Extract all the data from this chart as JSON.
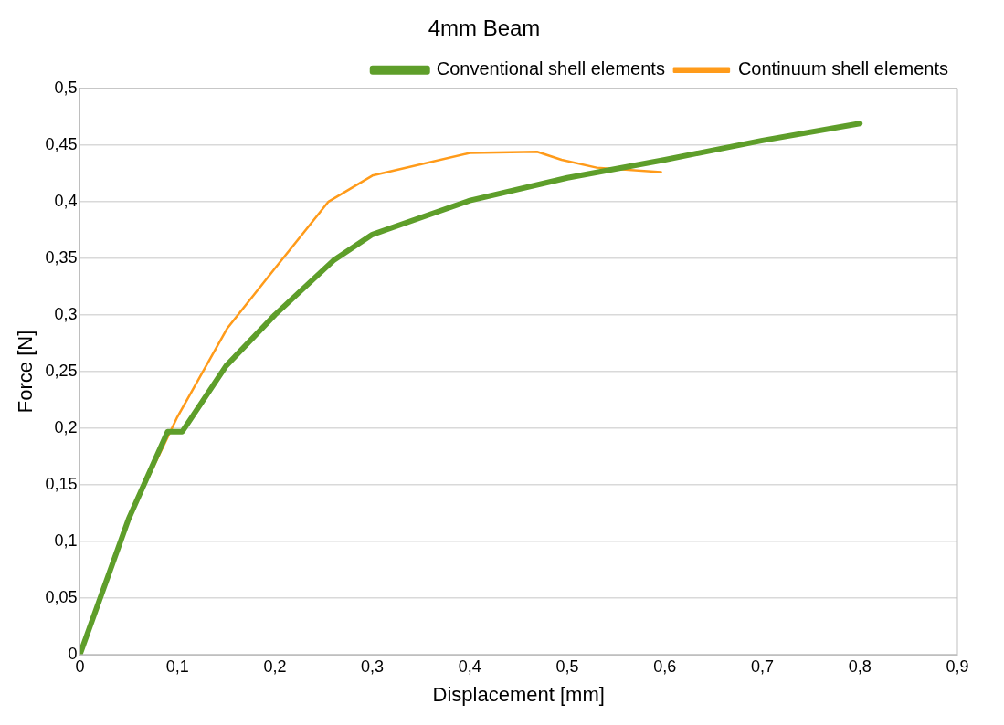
{
  "chart_data": {
    "type": "line",
    "title": "4mm Beam",
    "xlabel": "Displacement [mm]",
    "ylabel": "Force [N]",
    "xlim": [
      0,
      0.9
    ],
    "xticks": [
      0,
      {
        "value": 0.1,
        "label": "0,1"
      },
      {
        "value": 0.2,
        "label": "0,2"
      },
      {
        "value": 0.3,
        "label": "0,3"
      },
      {
        "value": 0.4,
        "label": "0,4"
      },
      {
        "value": 0.5,
        "label": "0,5"
      },
      {
        "value": 0.6,
        "label": "0,6"
      },
      {
        "value": 0.7,
        "label": "0,7"
      },
      {
        "value": 0.8,
        "label": "0,8"
      },
      {
        "value": 0.9,
        "label": "0,9"
      }
    ],
    "ylim": [
      0,
      0.5
    ],
    "yticks": [
      0,
      {
        "value": 0.05,
        "label": "0,05"
      },
      {
        "value": 0.1,
        "label": "0,1"
      },
      {
        "value": 0.15,
        "label": "0,15"
      },
      {
        "value": 0.2,
        "label": "0,2"
      },
      {
        "value": 0.25,
        "label": "0,25"
      },
      {
        "value": 0.3,
        "label": "0,3"
      },
      {
        "value": 0.35,
        "label": "0,35"
      },
      {
        "value": 0.4,
        "label": "0,4"
      },
      {
        "value": 0.45,
        "label": "0,45"
      },
      {
        "value": 0.5,
        "label": "0,5"
      }
    ],
    "grid": "y",
    "legend": "top right",
    "marker": "none",
    "line_style": "solid",
    "series": [
      {
        "name": "Conventional shell elements",
        "color": "#5e9e2a",
        "x": [
          0,
          0.05,
          0.09,
          0.105,
          0.15,
          0.2,
          0.26,
          0.3,
          0.4,
          0.5,
          0.6,
          0.7,
          0.8
        ],
        "values": [
          0,
          0.12,
          0.197,
          0.197,
          0.255,
          0.3,
          0.348,
          0.371,
          0.401,
          0.421,
          0.437,
          0.454,
          0.469
        ]
      },
      {
        "name": "Continuum shell elements",
        "color": "#ff9b1a",
        "x": [
          0,
          0.05,
          0.1,
          0.151,
          0.2,
          0.255,
          0.3,
          0.4,
          0.469,
          0.494,
          0.53,
          0.596
        ],
        "values": [
          0,
          0.12,
          0.21,
          0.288,
          0.341,
          0.4,
          0.423,
          0.443,
          0.444,
          0.437,
          0.43,
          0.426
        ]
      }
    ]
  }
}
